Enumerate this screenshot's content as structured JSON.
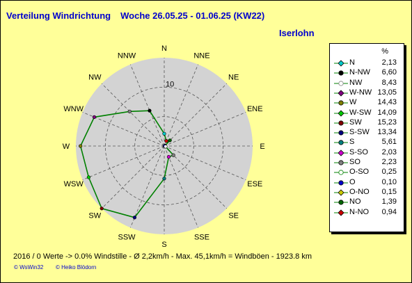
{
  "title": "Verteilung Windrichtung",
  "period": "Woche 26.05.25 - 01.06.25 (KW22)",
  "location": "Iserlohn",
  "footer": "2016 / 0 Werte  -> 0.0% Windstille   -   Ø 2,2km/h  -  Max. 45,1km/h = Windböen   -   1923.8 km",
  "copyright_left": "© WsWin32",
  "copyright_right": "© Heiko Blödorn",
  "colors": {
    "background": "#ffff99",
    "title": "#0000cc",
    "disc": "#d3d3d3",
    "series_line": "#008000"
  },
  "chart_data": {
    "type": "polar",
    "directions": [
      "N",
      "NNE",
      "NE",
      "ENE",
      "E",
      "ESE",
      "SE",
      "SSE",
      "S",
      "SSW",
      "SW",
      "WSW",
      "W",
      "WNW",
      "NW",
      "NNW"
    ],
    "values": [
      2.13,
      0.94,
      1.39,
      0.15,
      0.1,
      0.25,
      2.23,
      2.03,
      5.61,
      13.34,
      15.23,
      14.09,
      14.43,
      13.05,
      8.43,
      6.6
    ],
    "radial_max": 15.23,
    "radial_ticks": [
      10
    ],
    "unit": "%"
  },
  "legend": {
    "unit": "%",
    "items": [
      {
        "label": "N",
        "value": "2,13",
        "color": "#00cccc",
        "marker": "diamond"
      },
      {
        "label": "N-NW",
        "value": "6,60",
        "color": "#000000",
        "marker": "circle"
      },
      {
        "label": "NW",
        "value": "8,43",
        "color": "#808080",
        "marker": "circle-open"
      },
      {
        "label": "W-NW",
        "value": "13,05",
        "color": "#800080",
        "marker": "diamond"
      },
      {
        "label": "W",
        "value": "14,43",
        "color": "#808000",
        "marker": "circle"
      },
      {
        "label": "W-SW",
        "value": "14,09",
        "color": "#00cc00",
        "marker": "diamond"
      },
      {
        "label": "SW",
        "value": "15,23",
        "color": "#800000",
        "marker": "circle"
      },
      {
        "label": "S-SW",
        "value": "13,34",
        "color": "#000080",
        "marker": "circle"
      },
      {
        "label": "S",
        "value": "5,61",
        "color": "#008080",
        "marker": "circle"
      },
      {
        "label": "S-SO",
        "value": "2,03",
        "color": "#cc00cc",
        "marker": "diamond"
      },
      {
        "label": "SO",
        "value": "2,23",
        "color": "#808080",
        "marker": "circle"
      },
      {
        "label": "O-SO",
        "value": "0,25",
        "color": "#ffffff",
        "marker": "circle-open"
      },
      {
        "label": "O",
        "value": "0,10",
        "color": "#0000cc",
        "marker": "circle"
      },
      {
        "label": "O-NO",
        "value": "0,15",
        "color": "#cccc00",
        "marker": "diamond"
      },
      {
        "label": "NO",
        "value": "1,39",
        "color": "#006600",
        "marker": "circle"
      },
      {
        "label": "N-NO",
        "value": "0,94",
        "color": "#cc0000",
        "marker": "diamond"
      }
    ]
  }
}
